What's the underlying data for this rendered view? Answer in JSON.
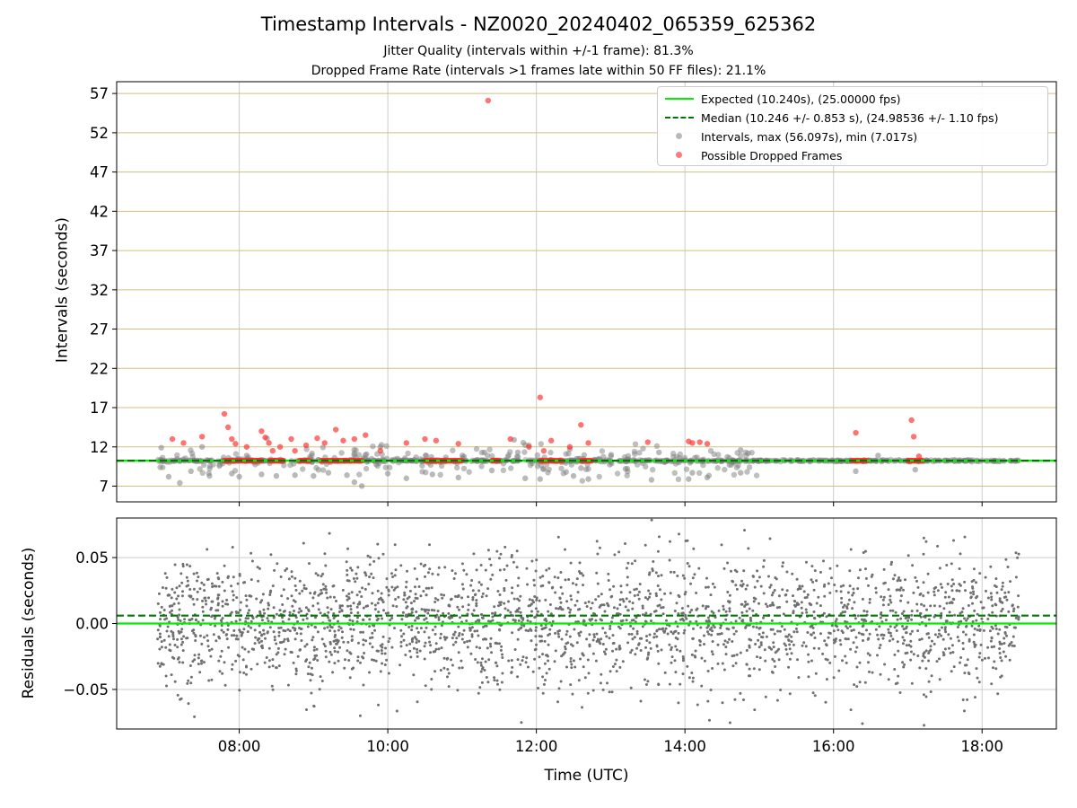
{
  "figure": {
    "title": "Timestamp Intervals - NZ0020_20240402_065359_625362",
    "subtitle_1": "Jitter Quality (intervals within +/-1 frame): 81.3%",
    "subtitle_2": "Dropped Frame Rate (intervals >1 frames late within 50 FF files): 21.1%",
    "xlabel": "Time (UTC)"
  },
  "legend": {
    "placement": "top-right",
    "items": [
      {
        "label": "Expected (10.240s), (25.00000 fps)",
        "style": "solid-line",
        "color": "#00ee00"
      },
      {
        "label": "Median (10.246 +/- 0.853 s), (24.98536 +/- 1.10 fps)",
        "style": "dashed-line",
        "color": "#007700"
      },
      {
        "label": "Intervals, max (56.097s), min (7.017s)",
        "style": "dot",
        "color": "#808080"
      },
      {
        "label": "Possible Dropped Frames",
        "style": "dot",
        "color": "#ff3333"
      }
    ]
  },
  "colors": {
    "expected": "#00ee00",
    "median": "#007700",
    "intervals": "#808080",
    "dropped": "#ff3333",
    "top_hgrid": "#d4bf80",
    "grid": "#cccccc"
  },
  "chart_data": [
    {
      "type": "scatter",
      "title": "",
      "xlabel": "",
      "ylabel": "Intervals (seconds)",
      "x_unit": "hours UTC",
      "xlim": [
        6.35,
        19.0
      ],
      "ylim": [
        5.0,
        58.5
      ],
      "xticks": [
        8,
        10,
        12,
        14,
        16,
        18
      ],
      "xtick_labels": [
        "08:00",
        "10:00",
        "12:00",
        "14:00",
        "16:00",
        "18:00"
      ],
      "yticks": [
        7,
        12,
        17,
        22,
        27,
        32,
        37,
        42,
        47,
        52,
        57
      ],
      "ytick_labels": [
        "7",
        "12",
        "17",
        "22",
        "27",
        "32",
        "37",
        "42",
        "47",
        "52",
        "57"
      ],
      "grid": true,
      "hlines": [
        {
          "name": "Expected",
          "y": 10.24,
          "style": "solid"
        },
        {
          "name": "Median",
          "y": 10.246,
          "style": "dashed"
        }
      ],
      "series": [
        {
          "name": "Intervals, max (56.097s), min (7.017s)",
          "note": "dense band of ~1700 intervals near 10.24 s from 06:54 to 18:30 UTC; notable outliers listed",
          "x_range": [
            6.9,
            18.5
          ],
          "typical": 10.24,
          "outliers": [
            [
              6.95,
              11.9
            ],
            [
              7.05,
              8.2
            ],
            [
              7.2,
              7.4
            ],
            [
              7.35,
              8.9
            ],
            [
              7.5,
              12.0
            ],
            [
              7.6,
              8.3
            ],
            [
              7.9,
              8.6
            ],
            [
              8.0,
              8.2
            ],
            [
              8.1,
              10.9
            ],
            [
              8.3,
              8.5
            ],
            [
              8.5,
              8.3
            ],
            [
              8.75,
              8.4
            ],
            [
              9.0,
              8.3
            ],
            [
              9.2,
              8.7
            ],
            [
              9.45,
              8.4
            ],
            [
              9.55,
              7.5
            ],
            [
              9.65,
              7.017
            ],
            [
              9.9,
              12.0
            ],
            [
              10.0,
              8.6
            ],
            [
              10.25,
              8.0
            ],
            [
              10.6,
              8.5
            ],
            [
              10.95,
              8.1
            ],
            [
              11.3,
              11.3
            ],
            [
              11.4,
              9.0
            ],
            [
              11.7,
              12.9
            ],
            [
              11.75,
              11.3
            ],
            [
              11.85,
              8.0
            ],
            [
              12.05,
              7.9
            ],
            [
              12.4,
              8.8
            ],
            [
              12.45,
              11.7
            ],
            [
              12.5,
              8.3
            ],
            [
              12.6,
              9.3
            ],
            [
              12.7,
              7.9
            ],
            [
              13.2,
              9.2
            ],
            [
              13.55,
              7.8
            ],
            [
              13.65,
              11.3
            ],
            [
              14.05,
              7.9
            ],
            [
              14.1,
              8.7
            ],
            [
              14.3,
              8.1
            ],
            [
              14.75,
              8.7
            ],
            [
              14.75,
              11.6
            ],
            [
              14.85,
              11.2
            ],
            [
              16.3,
              8.9
            ],
            [
              16.6,
              10.9
            ],
            [
              17.1,
              9.1
            ],
            [
              17.25,
              10.3
            ]
          ]
        },
        {
          "name": "Possible Dropped Frames",
          "note": "dense band at 10.24 s in intervals listed below plus scattered points",
          "band_y": 10.24,
          "band_intervals": [
            [
              7.8,
              8.3
            ],
            [
              8.4,
              8.6
            ],
            [
              8.8,
              8.95
            ],
            [
              9.1,
              9.65
            ],
            [
              10.5,
              11.0
            ],
            [
              11.4,
              11.5
            ],
            [
              12.05,
              12.35
            ],
            [
              12.6,
              12.75
            ],
            [
              16.25,
              16.45
            ],
            [
              17.0,
              17.2
            ]
          ],
          "points": [
            [
              7.1,
              13.0
            ],
            [
              7.25,
              12.5
            ],
            [
              7.5,
              13.3
            ],
            [
              7.8,
              16.2
            ],
            [
              7.85,
              14.5
            ],
            [
              7.9,
              13.0
            ],
            [
              7.95,
              12.4
            ],
            [
              8.1,
              12.0
            ],
            [
              8.3,
              14.0
            ],
            [
              8.35,
              13.2
            ],
            [
              8.4,
              12.5
            ],
            [
              8.45,
              11.5
            ],
            [
              8.55,
              12.0
            ],
            [
              8.7,
              13.0
            ],
            [
              8.75,
              11.5
            ],
            [
              8.9,
              12.2
            ],
            [
              9.05,
              13.1
            ],
            [
              9.15,
              12.5
            ],
            [
              9.3,
              14.2
            ],
            [
              9.4,
              12.8
            ],
            [
              9.55,
              13.0
            ],
            [
              9.7,
              13.5
            ],
            [
              9.9,
              11.5
            ],
            [
              10.25,
              12.5
            ],
            [
              10.5,
              13.0
            ],
            [
              10.65,
              12.8
            ],
            [
              10.95,
              12.4
            ],
            [
              11.35,
              56.097
            ],
            [
              11.65,
              13.0
            ],
            [
              11.9,
              12.0
            ],
            [
              12.05,
              18.3
            ],
            [
              12.1,
              11.5
            ],
            [
              12.2,
              12.8
            ],
            [
              12.45,
              12.0
            ],
            [
              12.6,
              14.8
            ],
            [
              12.7,
              12.5
            ],
            [
              13.5,
              12.6
            ],
            [
              14.05,
              12.7
            ],
            [
              14.1,
              12.5
            ],
            [
              14.2,
              12.6
            ],
            [
              14.3,
              12.4
            ],
            [
              16.3,
              13.8
            ],
            [
              17.05,
              15.4
            ],
            [
              17.08,
              13.3
            ],
            [
              17.15,
              10.8
            ]
          ]
        }
      ]
    },
    {
      "type": "scatter",
      "title": "",
      "xlabel": "Time (UTC)",
      "ylabel": "Residuals (seconds)",
      "x_unit": "hours UTC",
      "xlim": [
        6.35,
        19.0
      ],
      "ylim": [
        -0.08,
        0.08
      ],
      "xticks": [
        8,
        10,
        12,
        14,
        16,
        18
      ],
      "xtick_labels": [
        "08:00",
        "10:00",
        "12:00",
        "14:00",
        "16:00",
        "18:00"
      ],
      "yticks": [
        -0.05,
        0.0,
        0.05
      ],
      "ytick_labels": [
        "−0.05",
        "0.00",
        "0.05"
      ],
      "grid": true,
      "hlines": [
        {
          "name": "Expected",
          "y": 0.0,
          "style": "solid"
        },
        {
          "name": "Median",
          "y": 0.006,
          "style": "dashed"
        }
      ],
      "series": [
        {
          "name": "Residuals",
          "note": "~2500 residuals uniformly spread over time 06:54–18:30 UTC, roughly normal with sd ~0.025 s, clipped to ±0.08",
          "x_range": [
            6.9,
            18.5
          ],
          "mean": 0.0,
          "std": 0.025
        }
      ]
    }
  ]
}
